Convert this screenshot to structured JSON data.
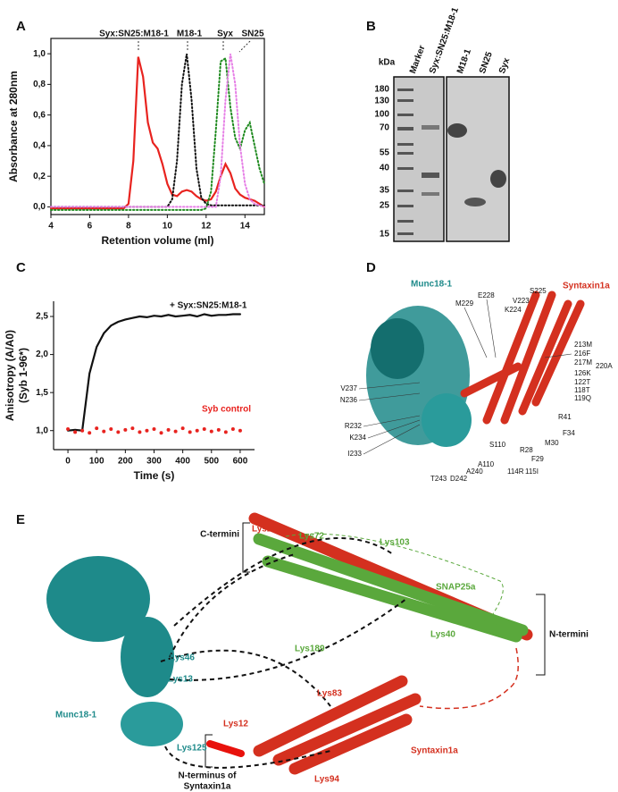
{
  "panels": [
    "A",
    "B",
    "C",
    "D",
    "E"
  ],
  "chart_data": [
    {
      "type": "line",
      "xlabel": "Retention volume (ml)",
      "ylabel": "Absorbance at 280nm",
      "annotations": [
        "Syx:SN25:M18-1",
        "M18-1",
        "Syx",
        "SN25"
      ],
      "x": [
        4,
        4.25,
        4.5,
        4.75,
        5,
        5.25,
        5.5,
        5.75,
        6,
        6.25,
        6.5,
        6.75,
        7,
        7.25,
        7.5,
        7.75,
        8,
        8.25,
        8.5,
        8.75,
        9,
        9.25,
        9.5,
        9.75,
        10,
        10.25,
        10.5,
        10.75,
        11,
        11.25,
        11.5,
        11.75,
        12,
        12.25,
        12.5,
        12.75,
        13,
        13.25,
        13.5,
        13.75,
        14,
        14.25,
        14.5,
        14.75,
        15
      ],
      "xlim": [
        4,
        15
      ],
      "xticks": [
        4,
        6,
        8,
        10,
        12,
        14
      ],
      "ylim": [
        -0.05,
        1.1
      ],
      "yticks": [
        {
          "value": 0,
          "label": "0,0"
        },
        {
          "value": 0.2,
          "label": "0,2"
        },
        {
          "value": 0.4,
          "label": "0,4"
        },
        {
          "value": 0.6,
          "label": "0,6"
        },
        {
          "value": 0.8,
          "label": "0,8"
        },
        {
          "value": 1.0,
          "label": "1,0"
        }
      ],
      "series": [
        {
          "name": "Syx:SN25:M18-1",
          "color": "#e8231f",
          "style": "solid",
          "values": [
            -0.01,
            -0.01,
            -0.01,
            -0.01,
            -0.01,
            -0.01,
            -0.01,
            -0.01,
            -0.01,
            -0.01,
            -0.01,
            -0.01,
            -0.01,
            -0.01,
            -0.01,
            -0.01,
            0.02,
            0.3,
            0.98,
            0.85,
            0.55,
            0.42,
            0.38,
            0.28,
            0.15,
            0.08,
            0.07,
            0.1,
            0.11,
            0.1,
            0.07,
            0.05,
            0.04,
            0.05,
            0.1,
            0.2,
            0.28,
            0.22,
            0.12,
            0.08,
            0.06,
            0.05,
            0.04,
            0.02,
            0.0
          ]
        },
        {
          "name": "M18-1",
          "color": "#111111",
          "style": "dotted",
          "values": [
            0,
            0,
            0,
            0,
            0,
            0,
            0,
            0,
            0,
            0,
            0,
            0,
            0,
            0,
            0,
            0,
            0,
            0,
            0,
            0,
            0,
            0,
            0,
            0,
            0,
            0.05,
            0.3,
            0.8,
            1.0,
            0.7,
            0.25,
            0.06,
            0.02,
            0.01,
            0.01,
            0.01,
            0.01,
            0.01,
            0.01,
            0.01,
            0.01,
            0.01,
            0.01,
            0.01,
            0.01
          ]
        },
        {
          "name": "Syx",
          "color": "#1f8a1f",
          "style": "dotted",
          "values": [
            -0.02,
            -0.02,
            -0.02,
            -0.02,
            -0.02,
            -0.02,
            -0.02,
            -0.02,
            -0.02,
            -0.02,
            -0.02,
            -0.02,
            -0.02,
            -0.02,
            -0.02,
            -0.02,
            -0.02,
            -0.02,
            -0.02,
            -0.02,
            -0.02,
            -0.02,
            -0.02,
            -0.02,
            -0.02,
            -0.02,
            -0.02,
            -0.02,
            -0.02,
            -0.02,
            -0.02,
            -0.02,
            -0.01,
            0.1,
            0.5,
            0.95,
            0.97,
            0.65,
            0.45,
            0.38,
            0.5,
            0.55,
            0.4,
            0.25,
            0.15
          ]
        },
        {
          "name": "SN25",
          "color": "#e67fe6",
          "style": "dotted",
          "values": [
            0,
            0,
            0,
            0,
            0,
            0,
            0,
            0,
            0,
            0,
            0,
            0,
            0,
            0,
            0,
            0,
            0,
            0,
            0,
            0,
            0,
            0,
            0,
            0,
            0,
            0,
            0,
            0,
            0,
            0,
            0,
            0,
            0,
            0,
            0,
            0.2,
            0.7,
            1.0,
            0.8,
            0.4,
            0.15,
            0.05,
            0.02,
            0.01,
            0.0
          ]
        }
      ]
    },
    {
      "type": "line",
      "xlabel": "Time (s)",
      "ylabel": "Anisotropy (A/A0)",
      "ylabel2": "(Syb 1-96*)",
      "annotations": [
        "+ Syx:SN25:M18-1",
        "Syb control"
      ],
      "x": [
        0,
        25,
        50,
        75,
        100,
        125,
        150,
        175,
        200,
        225,
        250,
        275,
        300,
        325,
        350,
        375,
        400,
        425,
        450,
        475,
        500,
        525,
        550,
        575,
        600
      ],
      "xlim": [
        -50,
        650
      ],
      "xticks": [
        0,
        100,
        200,
        300,
        400,
        500,
        600
      ],
      "ylim": [
        0.75,
        2.7
      ],
      "yticks": [
        {
          "value": 1.0,
          "label": "1,0"
        },
        {
          "value": 1.5,
          "label": "1,5"
        },
        {
          "value": 2.0,
          "label": "2,0"
        },
        {
          "value": 2.5,
          "label": "2,5"
        }
      ],
      "series": [
        {
          "name": "+ Syx:SN25:M18-1",
          "color": "#111111",
          "style": "solid",
          "values": [
            1.0,
            1.01,
            1.0,
            1.75,
            2.1,
            2.28,
            2.38,
            2.43,
            2.46,
            2.48,
            2.5,
            2.49,
            2.51,
            2.5,
            2.52,
            2.5,
            2.51,
            2.52,
            2.5,
            2.53,
            2.51,
            2.52,
            2.52,
            2.53,
            2.53
          ]
        },
        {
          "name": "Syb control",
          "color": "#e8231f",
          "style": "dots",
          "values": [
            1.02,
            0.98,
            1.0,
            0.97,
            1.03,
            0.99,
            1.02,
            0.98,
            1.01,
            1.03,
            0.98,
            1.0,
            1.02,
            0.97,
            1.01,
            0.99,
            1.03,
            0.98,
            1.0,
            1.02,
            0.99,
            1.01,
            0.98,
            1.02,
            1.0
          ]
        }
      ]
    }
  ],
  "gel": {
    "unit": "kDa",
    "lanes": [
      "Marker",
      "Syx:SN25:M18-1",
      "M18-1",
      "SN25",
      "Syx"
    ],
    "markers": [
      "180",
      "130",
      "100",
      "70",
      "55",
      "40",
      "35",
      "25",
      "15"
    ]
  },
  "structure_d": {
    "munc": "Munc18-1",
    "syntaxin": "Syntaxin1a",
    "residues": [
      "E228",
      "V223",
      "S225",
      "M229",
      "K224",
      "213M",
      "216F",
      "217M",
      "220A",
      "126K",
      "122T",
      "118T",
      "119Q",
      "V237",
      "N236",
      "R41",
      "F34",
      "R232",
      "K234",
      "M30",
      "S110",
      "R28",
      "F29",
      "I233",
      "A110",
      "114R",
      "115I",
      "T243",
      "D242",
      "A240"
    ]
  },
  "structure_e": {
    "c_termini": "C-termini",
    "n_termini": "N-termini",
    "n_terminus": "N-terminus of",
    "n_terminus2": "Syntaxin1a",
    "munc": "Munc18-1",
    "snap": "SNAP25a",
    "syntaxin": "Syntaxin1a",
    "lysines": [
      "Lys252",
      "Lys72",
      "Lys103",
      "Lys40",
      "Lys189",
      "Lys46",
      "Lys13",
      "Lys125",
      "Lys83",
      "Lys12",
      "Lys94"
    ]
  }
}
